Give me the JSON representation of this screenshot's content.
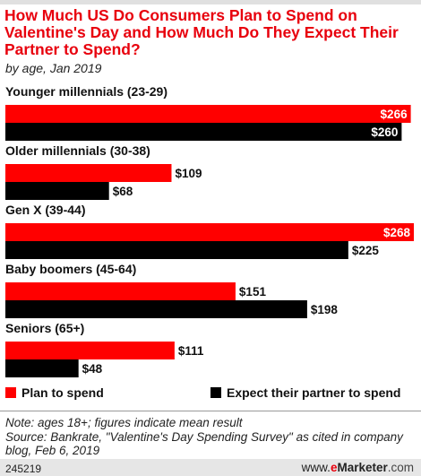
{
  "title": "How Much US Do Consumers Plan to Spend on Valentine's Day and How Much Do They Expect Their Partner to Spend?",
  "subtitle": "by age, Jan 2019",
  "chart_data": {
    "type": "bar",
    "orientation": "horizontal",
    "categories": [
      "Younger millennials (23-29)",
      "Older millennials (30-38)",
      "Gen X (39-44)",
      "Baby boomers (45-64)",
      "Seniors (65+)"
    ],
    "series": [
      {
        "name": "Plan to spend",
        "values": [
          266,
          109,
          268,
          151,
          111
        ],
        "labels": [
          "$266",
          "$109",
          "$268",
          "$151",
          "$111"
        ],
        "color": "#ff0000"
      },
      {
        "name": "Expect their partner to spend",
        "values": [
          260,
          68,
          225,
          198,
          48
        ],
        "labels": [
          "$260",
          "$68",
          "$225",
          "$198",
          "$48"
        ],
        "color": "#000000"
      }
    ],
    "xlim": [
      0,
      268
    ],
    "grid": false,
    "legend": "bottom"
  },
  "legend": {
    "plan_label": "Plan to spend",
    "expect_label": "Expect their partner to spend"
  },
  "note": "Note: ages 18+; figures indicate mean result",
  "source": "Source: Bankrate, \"Valentine's Day Spending Survey\" as cited in company blog, Feb 6, 2019",
  "footer": {
    "chart_id": "245219",
    "brand_www": "www.",
    "brand_e": "e",
    "brand_main": "Marketer",
    "brand_com": ".com"
  }
}
